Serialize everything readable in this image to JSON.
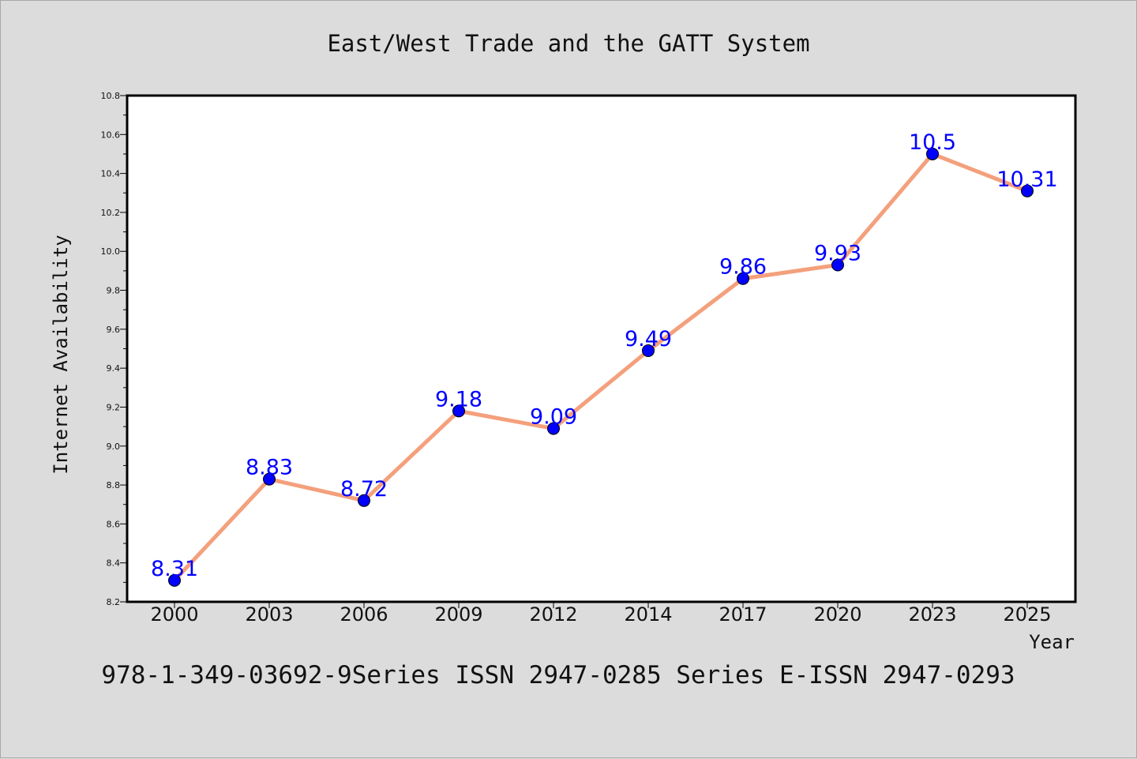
{
  "chart_data": {
    "type": "line",
    "title": "East/West Trade and the GATT System",
    "xlabel": "Year",
    "ylabel": "Internet Availability",
    "categories": [
      "2000",
      "2003",
      "2006",
      "2009",
      "2012",
      "2014",
      "2017",
      "2020",
      "2023",
      "2025"
    ],
    "series": [
      {
        "values": [
          8.31,
          8.83,
          8.72,
          9.18,
          9.09,
          9.49,
          9.86,
          9.93,
          10.5,
          10.31
        ],
        "line_color": "#f4a07c",
        "marker_color": "#0000ff"
      }
    ],
    "ylim": [
      8.2,
      10.8
    ],
    "yticks": [
      "8.2",
      "8.4",
      "8.6",
      "8.8",
      "9.0",
      "9.2",
      "9.4",
      "9.6",
      "9.8",
      "10.0",
      "10.2",
      "10.4",
      "10.6",
      "10.8"
    ],
    "data_labels": [
      "8.31",
      "8.83",
      "8.72",
      "9.18",
      "9.09",
      "9.49",
      "9.86",
      "9.93",
      "10.5",
      "10.31"
    ],
    "grid": false,
    "caption": "978-1-349-03692-9Series ISSN 2947-0285 Series E-ISSN 2947-0293"
  }
}
